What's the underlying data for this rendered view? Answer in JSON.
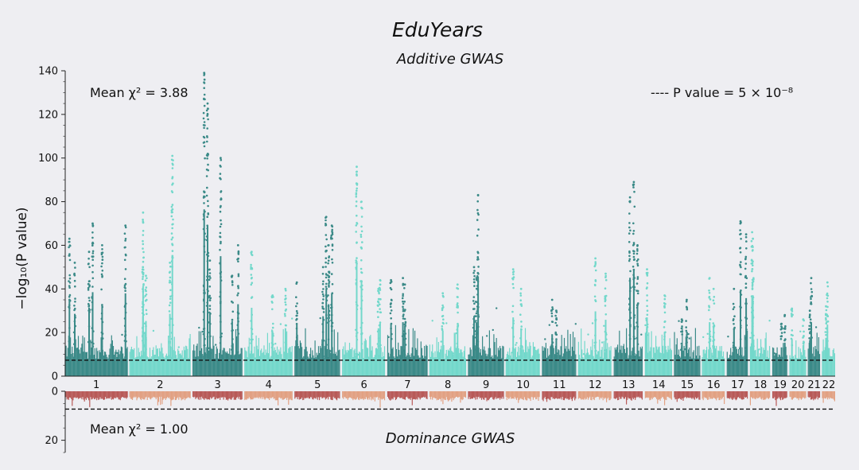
{
  "chart_data": {
    "title": "EduYears",
    "type": "scatter",
    "panels": [
      {
        "name": "additive",
        "subtitle": "Additive GWAS",
        "ylabel": "−log₁₀(P value)",
        "ylim": [
          0,
          140
        ],
        "yticks": [
          0,
          20,
          40,
          60,
          80,
          100,
          120,
          140
        ],
        "annotation": "Mean χ² = 3.88",
        "legend": "---- P value = 5 × 10⁻⁸",
        "threshold": 7.3,
        "colors": [
          "#3b8a88",
          "#73d8cb"
        ],
        "chromosome_peaks": [
          {
            "chr": "1",
            "peaks": [
              60,
              70,
              69,
              63,
              52,
              57
            ]
          },
          {
            "chr": "2",
            "peaks": [
              101,
              75,
              52,
              50,
              46
            ]
          },
          {
            "chr": "3",
            "peaks": [
              139,
              125,
              100,
              60,
              53,
              46
            ]
          },
          {
            "chr": "4",
            "peaks": [
              57,
              40,
              37
            ]
          },
          {
            "chr": "5",
            "peaks": [
              73,
              69,
              60,
              50,
              43
            ]
          },
          {
            "chr": "6",
            "peaks": [
              96,
              80,
              44,
              40
            ]
          },
          {
            "chr": "7",
            "peaks": [
              45,
              44,
              42
            ]
          },
          {
            "chr": "8",
            "peaks": [
              42,
              38
            ]
          },
          {
            "chr": "9",
            "peaks": [
              83,
              50,
              45
            ]
          },
          {
            "chr": "10",
            "peaks": [
              40,
              49
            ]
          },
          {
            "chr": "11",
            "peaks": [
              35,
              30
            ]
          },
          {
            "chr": "12",
            "peaks": [
              54,
              47
            ]
          },
          {
            "chr": "13",
            "peaks": [
              89,
              82,
              60
            ]
          },
          {
            "chr": "14",
            "peaks": [
              49,
              37
            ]
          },
          {
            "chr": "15",
            "peaks": [
              35,
              26
            ]
          },
          {
            "chr": "16",
            "peaks": [
              45,
              40
            ]
          },
          {
            "chr": "17",
            "peaks": [
              71,
              65,
              40
            ]
          },
          {
            "chr": "18",
            "peaks": [
              66,
              63
            ]
          },
          {
            "chr": "19",
            "peaks": [
              28,
              24
            ]
          },
          {
            "chr": "20",
            "peaks": [
              31,
              26
            ]
          },
          {
            "chr": "21",
            "peaks": [
              45,
              30
            ]
          },
          {
            "chr": "22",
            "peaks": [
              43,
              32
            ]
          }
        ]
      },
      {
        "name": "dominance",
        "subtitle": "Dominance GWAS",
        "ylim": [
          0,
          25
        ],
        "yticks": [
          0,
          20
        ],
        "inverted": true,
        "annotation": "Mean χ² = 1.00",
        "threshold": 7.3,
        "colors": [
          "#b85a58",
          "#e2a183"
        ]
      }
    ],
    "chromosomes": [
      "1",
      "2",
      "3",
      "4",
      "5",
      "6",
      "7",
      "8",
      "9",
      "10",
      "11",
      "12",
      "13",
      "14",
      "15",
      "16",
      "17",
      "18",
      "19",
      "20",
      "21",
      "22"
    ],
    "chromosome_lengths_mb": [
      249,
      243,
      198,
      191,
      181,
      171,
      159,
      145,
      141,
      136,
      135,
      133,
      115,
      107,
      102,
      90,
      83,
      80,
      59,
      64,
      47,
      51
    ]
  }
}
